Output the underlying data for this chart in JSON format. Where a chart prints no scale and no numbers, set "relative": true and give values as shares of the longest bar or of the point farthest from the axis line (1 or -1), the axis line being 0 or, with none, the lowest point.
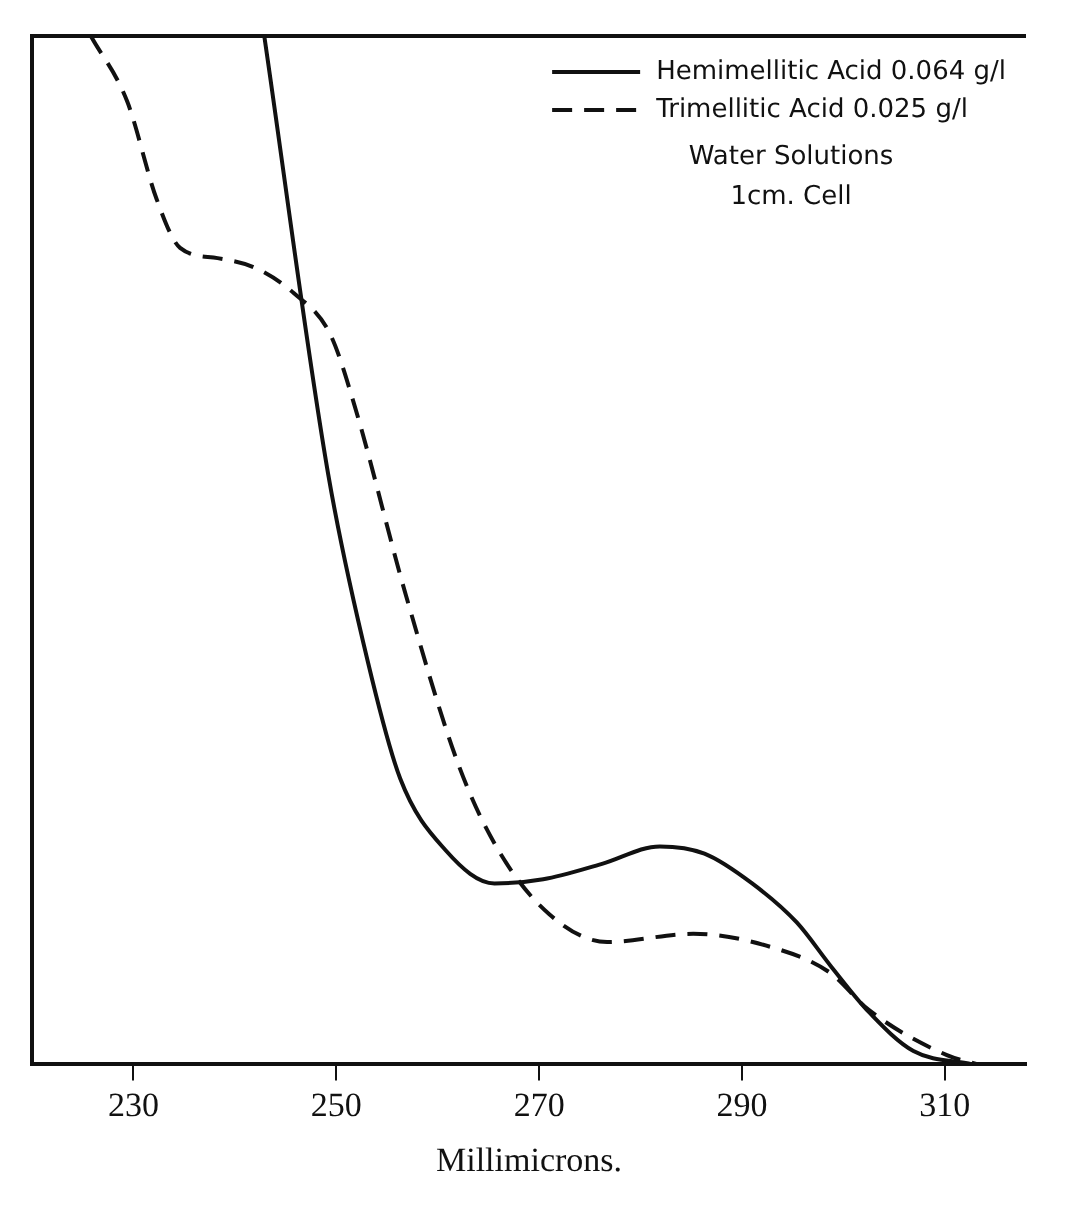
{
  "chart_data": {
    "type": "line",
    "relative": true,
    "xlabel": "Millimicrons.",
    "xlim": [
      220,
      318
    ],
    "xticks": [
      230,
      250,
      270,
      290,
      310
    ],
    "grid": false,
    "legend": "top right",
    "marker": "none",
    "annotations": [
      "Water Solutions",
      "1cm. Cell"
    ],
    "series": [
      {
        "name": "Hemimellitic Acid 0.064 g/l",
        "color": "#111111",
        "line_style": "solid",
        "x": [
          242.9,
          249.2,
          253.1,
          256.3,
          260.8,
          265.6,
          270.4,
          276.2,
          281.9,
          286.3,
          291.0,
          295.4,
          298.8,
          302.5,
          306.9,
          312.7
        ],
        "values": [
          1.0,
          0.574,
          0.392,
          0.278,
          0.208,
          0.176,
          0.18,
          0.195,
          0.212,
          0.205,
          0.176,
          0.138,
          0.095,
          0.051,
          0.013,
          0
        ]
      },
      {
        "name": "Trimellitic Acid 0.025 g/l",
        "color": "#111111",
        "line_style": "dashed",
        "x": [
          225.8,
          229.4,
          232.3,
          234.6,
          238.3,
          241.9,
          245.8,
          249.4,
          251.7,
          256.9,
          262.1,
          266.0,
          271.0,
          276.7,
          285.2,
          292.9,
          298.7,
          302.5,
          310.2,
          313.3
        ],
        "values": [
          1.0,
          0.936,
          0.841,
          0.794,
          0.784,
          0.775,
          0.75,
          0.71,
          0.644,
          0.455,
          0.29,
          0.208,
          0.146,
          0.119,
          0.127,
          0.114,
          0.089,
          0.053,
          0.009,
          0
        ]
      }
    ]
  }
}
